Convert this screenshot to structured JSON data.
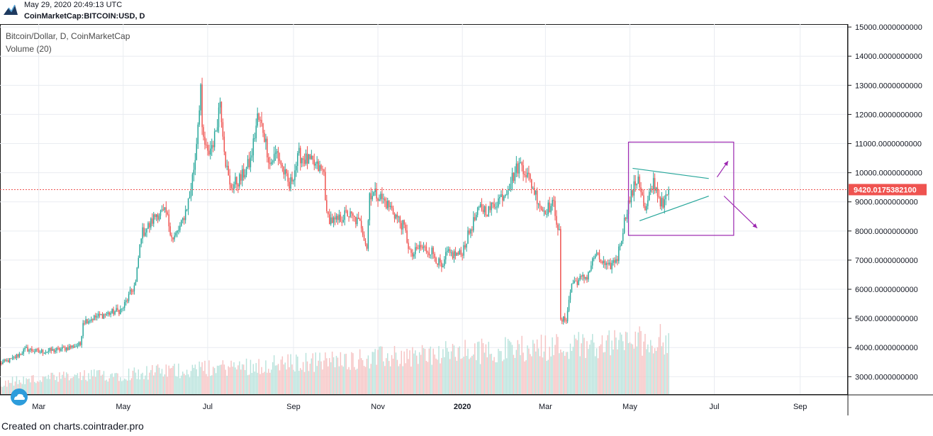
{
  "header": {
    "timestamp": "May 29, 2020 20:49:13 UTC",
    "symbol": "CoinMarketCap:BITCOIN:USD, D"
  },
  "legend": {
    "title": "Bitcoin/Dollar, D, CoinMarketCap",
    "volume": "Volume (20)"
  },
  "footer": {
    "text": "Created on charts.cointrader.pro"
  },
  "colors": {
    "up": "#26a69a",
    "down": "#ef5350",
    "volume_up": "#b9e3dc",
    "volume_down": "#f6c3c3",
    "price_line": "#ef5350",
    "box": "#9c27b0",
    "triangle": "#26a69a",
    "arrow": "#9c27b0",
    "grid": "#e9ecf1"
  },
  "icons": {
    "logo": "tradingview-logo-icon",
    "watermark": "cloud-icon"
  },
  "chart_data": {
    "type": "candlestick",
    "interval": "D",
    "y_ticks": [
      "15000.0000000000",
      "14000.0000000000",
      "13000.0000000000",
      "12000.0000000000",
      "11000.0000000000",
      "10000.0000000000",
      "9000.0000000000",
      "8000.0000000000",
      "7000.0000000000",
      "6000.0000000000",
      "5000.0000000000",
      "4000.0000000000",
      "3000.0000000000"
    ],
    "ylim": [
      2400,
      15100
    ],
    "x_ticks": [
      "Mar",
      "May",
      "Jul",
      "Sep",
      "Nov",
      "2020",
      "Mar",
      "May",
      "Jul",
      "Sep"
    ],
    "x_tick_dates": [
      "2019-03-01",
      "2019-05-01",
      "2019-07-01",
      "2019-09-01",
      "2019-11-01",
      "2020-01-01",
      "2020-03-01",
      "2020-05-01",
      "2020-07-01",
      "2020-09-01"
    ],
    "xlim": [
      "2019-02-01",
      "2020-10-05"
    ],
    "last_price": "9420.0175382100",
    "last_price_value": 9420.0175,
    "price_anchors": [
      [
        "2019-02-01",
        3450
      ],
      [
        "2019-02-10",
        3600
      ],
      [
        "2019-02-20",
        3950
      ],
      [
        "2019-03-01",
        3850
      ],
      [
        "2019-03-15",
        3920
      ],
      [
        "2019-03-31",
        4100
      ],
      [
        "2019-04-02",
        4900
      ],
      [
        "2019-04-15",
        5100
      ],
      [
        "2019-04-30",
        5300
      ],
      [
        "2019-05-10",
        6200
      ],
      [
        "2019-05-14",
        7900
      ],
      [
        "2019-05-20",
        8200
      ],
      [
        "2019-05-25",
        8600
      ],
      [
        "2019-06-01",
        8600
      ],
      [
        "2019-06-06",
        7700
      ],
      [
        "2019-06-12",
        8200
      ],
      [
        "2019-06-18",
        9200
      ],
      [
        "2019-06-22",
        10500
      ],
      [
        "2019-06-26",
        13000
      ],
      [
        "2019-06-27",
        11300
      ],
      [
        "2019-07-01",
        10600
      ],
      [
        "2019-07-06",
        11200
      ],
      [
        "2019-07-10",
        12500
      ],
      [
        "2019-07-14",
        10400
      ],
      [
        "2019-07-17",
        9500
      ],
      [
        "2019-07-25",
        9800
      ],
      [
        "2019-08-01",
        10400
      ],
      [
        "2019-08-06",
        11900
      ],
      [
        "2019-08-10",
        11500
      ],
      [
        "2019-08-15",
        10300
      ],
      [
        "2019-08-20",
        10700
      ],
      [
        "2019-08-29",
        9500
      ],
      [
        "2019-09-05",
        10600
      ],
      [
        "2019-09-15",
        10300
      ],
      [
        "2019-09-23",
        10000
      ],
      [
        "2019-09-25",
        8500
      ],
      [
        "2019-10-01",
        8300
      ],
      [
        "2019-10-10",
        8600
      ],
      [
        "2019-10-20",
        8200
      ],
      [
        "2019-10-24",
        7450
      ],
      [
        "2019-10-26",
        9300
      ],
      [
        "2019-11-01",
        9250
      ],
      [
        "2019-11-10",
        8800
      ],
      [
        "2019-11-20",
        8100
      ],
      [
        "2019-11-25",
        7100
      ],
      [
        "2019-12-01",
        7450
      ],
      [
        "2019-12-10",
        7300
      ],
      [
        "2019-12-18",
        6650
      ],
      [
        "2019-12-20",
        7200
      ],
      [
        "2019-12-31",
        7200
      ],
      [
        "2020-01-08",
        8200
      ],
      [
        "2020-01-14",
        8800
      ],
      [
        "2020-01-20",
        8700
      ],
      [
        "2020-02-01",
        9350
      ],
      [
        "2020-02-10",
        10200
      ],
      [
        "2020-02-13",
        10300
      ],
      [
        "2020-02-20",
        9600
      ],
      [
        "2020-02-28",
        8700
      ],
      [
        "2020-03-07",
        8900
      ],
      [
        "2020-03-11",
        7900
      ],
      [
        "2020-03-12",
        4900
      ],
      [
        "2020-03-16",
        5000
      ],
      [
        "2020-03-20",
        6200
      ],
      [
        "2020-03-31",
        6450
      ],
      [
        "2020-04-06",
        7200
      ],
      [
        "2020-04-15",
        6700
      ],
      [
        "2020-04-22",
        7100
      ],
      [
        "2020-04-29",
        8800
      ],
      [
        "2020-05-07",
        9900
      ],
      [
        "2020-05-12",
        8600
      ],
      [
        "2020-05-18",
        9700
      ],
      [
        "2020-05-25",
        8800
      ],
      [
        "2020-05-29",
        9420
      ]
    ],
    "volume_note": "Volume (20) histogram shaded at the bottom of the chart, grows into 2020",
    "annotations": {
      "rectangle": {
        "date_from": "2020-04-30",
        "date_to": "2020-07-15",
        "price_low": 7850,
        "price_high": 11050
      },
      "triangle_upper": [
        [
          "2020-05-03",
          10150
        ],
        [
          "2020-06-27",
          9800
        ]
      ],
      "triangle_lower": [
        [
          "2020-05-08",
          8350
        ],
        [
          "2020-06-27",
          9200
        ]
      ],
      "arrow_up": [
        [
          "2020-07-03",
          9850
        ],
        [
          "2020-07-11",
          10400
        ]
      ],
      "arrow_down": [
        [
          "2020-07-08",
          9200
        ],
        [
          "2020-08-01",
          8100
        ]
      ]
    }
  }
}
